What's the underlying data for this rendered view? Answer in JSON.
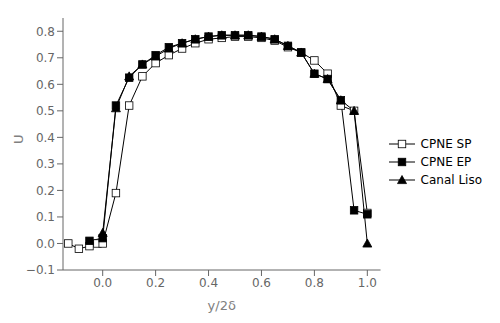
{
  "chart_data": {
    "type": "line",
    "title": "",
    "xlabel": "y/2δ",
    "ylabel": "U",
    "xlim": [
      -0.15,
      1.05
    ],
    "ylim": [
      -0.1,
      0.85
    ],
    "xticks": [
      {
        "value": 0.0,
        "label": "0.0"
      },
      0.2,
      0.4,
      0.6,
      0.8,
      {
        "value": 1.0,
        "label": "1.0"
      }
    ],
    "yticks": [
      {
        "value": -0.1,
        "label": "−0.1"
      },
      {
        "value": 0.0,
        "label": "0.0"
      },
      0.1,
      0.2,
      0.3,
      0.4,
      0.5,
      0.6,
      0.7,
      0.8
    ],
    "grid": false,
    "legend": "right",
    "series": [
      {
        "name": "CPNE SP",
        "color": "#000000",
        "marker": "open_square",
        "x": [
          -0.13,
          -0.09,
          -0.05,
          -0.02,
          0.0,
          0.05,
          0.1,
          0.15,
          0.2,
          0.25,
          0.3,
          0.35,
          0.4,
          0.45,
          0.5,
          0.55,
          0.6,
          0.65,
          0.7,
          0.75,
          0.8,
          0.85,
          0.9,
          0.95,
          1.0
        ],
        "values": [
          0.0,
          -0.02,
          -0.01,
          0.0,
          0.0,
          0.19,
          0.52,
          0.63,
          0.68,
          0.71,
          0.735,
          0.755,
          0.77,
          0.775,
          0.78,
          0.78,
          0.775,
          0.765,
          0.74,
          0.72,
          0.69,
          0.64,
          0.52,
          0.5,
          0.115
        ]
      },
      {
        "name": "CPNE EP",
        "color": "#000000",
        "marker": "square",
        "x": [
          -0.05,
          0.0,
          0.05,
          0.1,
          0.15,
          0.2,
          0.25,
          0.3,
          0.35,
          0.4,
          0.45,
          0.5,
          0.55,
          0.6,
          0.65,
          0.7,
          0.75,
          0.8,
          0.85,
          0.9,
          0.95,
          1.0
        ],
        "values": [
          0.01,
          0.02,
          0.52,
          0.625,
          0.675,
          0.71,
          0.74,
          0.755,
          0.77,
          0.78,
          0.785,
          0.785,
          0.785,
          0.78,
          0.77,
          0.745,
          0.72,
          0.64,
          0.62,
          0.54,
          0.125,
          0.11
        ]
      },
      {
        "name": "Canal Liso",
        "color": "#000000",
        "marker": "triangle",
        "x": [
          0.0,
          0.05,
          0.1,
          0.15,
          0.2,
          0.25,
          0.3,
          0.35,
          0.4,
          0.45,
          0.5,
          0.55,
          0.6,
          0.65,
          0.7,
          0.75,
          0.8,
          0.85,
          0.9,
          0.95,
          1.0
        ],
        "values": [
          0.04,
          0.51,
          0.63,
          0.675,
          0.705,
          0.735,
          0.755,
          0.77,
          0.78,
          0.785,
          0.785,
          0.785,
          0.78,
          0.77,
          0.745,
          0.72,
          0.64,
          0.62,
          0.54,
          0.5,
          0.0
        ]
      }
    ]
  }
}
